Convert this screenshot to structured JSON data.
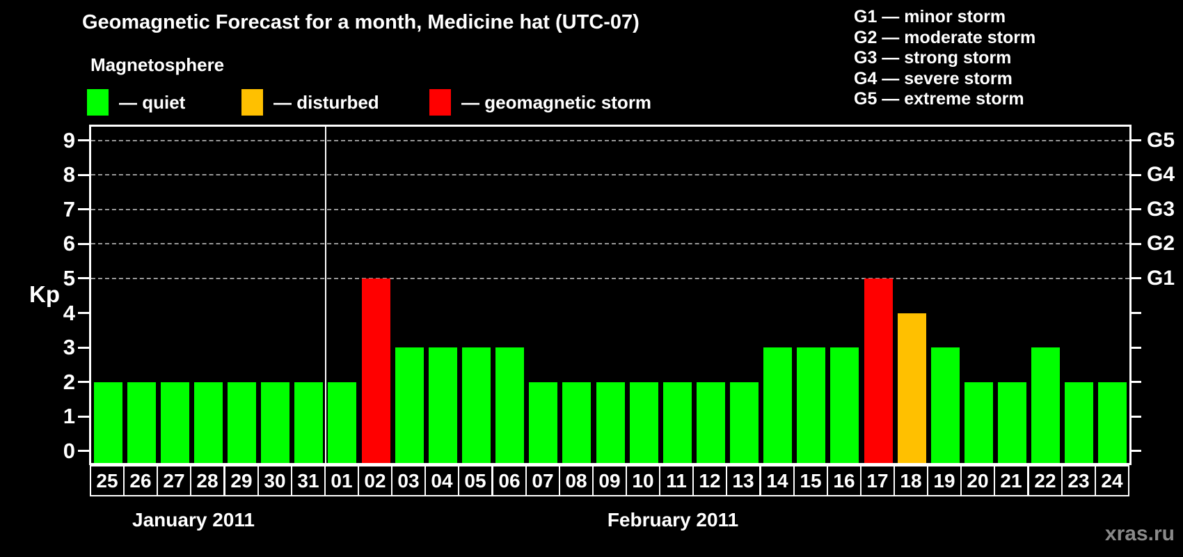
{
  "title": "Geomagnetic Forecast for a month, Medicine hat (UTC-07)",
  "legend": {
    "heading": "Magnetosphere",
    "items": [
      {
        "id": "quiet",
        "label": "— quiet",
        "color": "#00ff00"
      },
      {
        "id": "disturbed",
        "label": "— disturbed",
        "color": "#ffc000"
      },
      {
        "id": "storm",
        "label": "— geomagnetic storm",
        "color": "#ff0000"
      }
    ]
  },
  "storm_scale_legend": [
    "G1 — minor storm",
    "G2 — moderate storm",
    "G3 — strong storm",
    "G4 — severe storm",
    "G5 — extreme storm"
  ],
  "watermark": "xras.ru",
  "chart_data": {
    "type": "bar",
    "title": "Geomagnetic Forecast for a month, Medicine hat (UTC-07)",
    "ylabel": "Kp",
    "ylim": [
      -0.35,
      9.4
    ],
    "yticks": [
      0,
      1,
      2,
      3,
      4,
      5,
      6,
      7,
      8,
      9
    ],
    "gridlines": [
      5,
      6,
      7,
      8,
      9
    ],
    "grid": "dashed horizontal at storm levels only",
    "right_axis": [
      {
        "kp": 5,
        "label": "G1"
      },
      {
        "kp": 6,
        "label": "G2"
      },
      {
        "kp": 7,
        "label": "G3"
      },
      {
        "kp": 8,
        "label": "G4"
      },
      {
        "kp": 9,
        "label": "G5"
      }
    ],
    "status_colors": {
      "quiet": "#00ff00",
      "disturbed": "#ffc000",
      "storm": "#ff0000"
    },
    "months": [
      {
        "label": "January 2011",
        "days": [
          {
            "day": "25",
            "kp": 2,
            "status": "quiet"
          },
          {
            "day": "26",
            "kp": 2,
            "status": "quiet"
          },
          {
            "day": "27",
            "kp": 2,
            "status": "quiet"
          },
          {
            "day": "28",
            "kp": 2,
            "status": "quiet"
          },
          {
            "day": "29",
            "kp": 2,
            "status": "quiet"
          },
          {
            "day": "30",
            "kp": 2,
            "status": "quiet"
          },
          {
            "day": "31",
            "kp": 2,
            "status": "quiet"
          }
        ]
      },
      {
        "label": "February 2011",
        "days": [
          {
            "day": "01",
            "kp": 2,
            "status": "quiet"
          },
          {
            "day": "02",
            "kp": 5,
            "status": "storm"
          },
          {
            "day": "03",
            "kp": 3,
            "status": "quiet"
          },
          {
            "day": "04",
            "kp": 3,
            "status": "quiet"
          },
          {
            "day": "05",
            "kp": 3,
            "status": "quiet"
          },
          {
            "day": "06",
            "kp": 3,
            "status": "quiet"
          },
          {
            "day": "07",
            "kp": 2,
            "status": "quiet"
          },
          {
            "day": "08",
            "kp": 2,
            "status": "quiet"
          },
          {
            "day": "09",
            "kp": 2,
            "status": "quiet"
          },
          {
            "day": "10",
            "kp": 2,
            "status": "quiet"
          },
          {
            "day": "11",
            "kp": 2,
            "status": "quiet"
          },
          {
            "day": "12",
            "kp": 2,
            "status": "quiet"
          },
          {
            "day": "13",
            "kp": 2,
            "status": "quiet"
          },
          {
            "day": "14",
            "kp": 3,
            "status": "quiet"
          },
          {
            "day": "15",
            "kp": 3,
            "status": "quiet"
          },
          {
            "day": "16",
            "kp": 3,
            "status": "quiet"
          },
          {
            "day": "17",
            "kp": 5,
            "status": "storm"
          },
          {
            "day": "18",
            "kp": 4,
            "status": "disturbed"
          },
          {
            "day": "19",
            "kp": 3,
            "status": "quiet"
          },
          {
            "day": "20",
            "kp": 2,
            "status": "quiet"
          },
          {
            "day": "21",
            "kp": 2,
            "status": "quiet"
          },
          {
            "day": "22",
            "kp": 3,
            "status": "quiet"
          },
          {
            "day": "23",
            "kp": 2,
            "status": "quiet"
          },
          {
            "day": "24",
            "kp": 2,
            "status": "quiet"
          }
        ]
      }
    ]
  }
}
